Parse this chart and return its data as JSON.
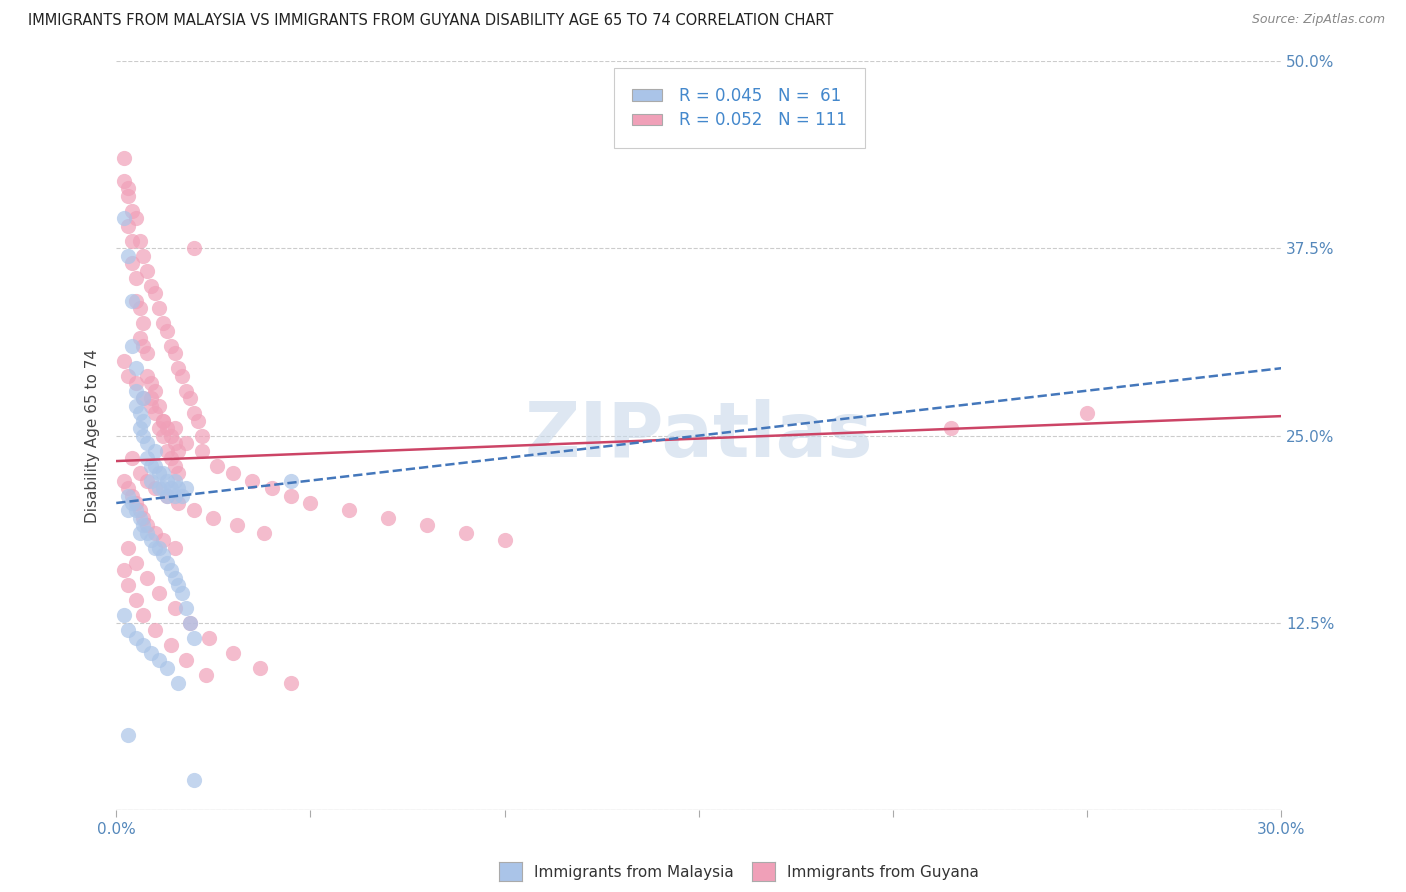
{
  "title": "IMMIGRANTS FROM MALAYSIA VS IMMIGRANTS FROM GUYANA DISABILITY AGE 65 TO 74 CORRELATION CHART",
  "source": "Source: ZipAtlas.com",
  "xlabel_label": "Immigrants from Malaysia",
  "xlabel_label2": "Immigrants from Guyana",
  "ylabel": "Disability Age 65 to 74",
  "xlim": [
    0.0,
    0.3
  ],
  "ylim": [
    0.0,
    0.5
  ],
  "xtick_positions": [
    0.0,
    0.05,
    0.1,
    0.15,
    0.2,
    0.25,
    0.3
  ],
  "ytick_positions": [
    0.0,
    0.125,
    0.25,
    0.375,
    0.5
  ],
  "malaysia_color": "#aac4e8",
  "guyana_color": "#f0a0b8",
  "malaysia_line_color": "#4477bb",
  "guyana_line_color": "#cc4466",
  "r_malaysia": 0.045,
  "n_malaysia": 61,
  "r_guyana": 0.052,
  "n_guyana": 111,
  "watermark": "ZIPatlas",
  "malaysia_scatter_x": [
    0.002,
    0.003,
    0.004,
    0.004,
    0.005,
    0.005,
    0.005,
    0.006,
    0.006,
    0.007,
    0.007,
    0.007,
    0.008,
    0.008,
    0.009,
    0.009,
    0.01,
    0.01,
    0.011,
    0.011,
    0.012,
    0.012,
    0.013,
    0.013,
    0.014,
    0.015,
    0.015,
    0.016,
    0.017,
    0.018,
    0.003,
    0.003,
    0.004,
    0.005,
    0.006,
    0.006,
    0.007,
    0.008,
    0.009,
    0.01,
    0.011,
    0.012,
    0.013,
    0.014,
    0.015,
    0.016,
    0.017,
    0.018,
    0.019,
    0.02,
    0.002,
    0.003,
    0.005,
    0.007,
    0.009,
    0.011,
    0.013,
    0.016,
    0.02,
    0.003,
    0.045
  ],
  "malaysia_scatter_y": [
    0.395,
    0.37,
    0.34,
    0.31,
    0.295,
    0.28,
    0.27,
    0.265,
    0.255,
    0.275,
    0.26,
    0.25,
    0.245,
    0.235,
    0.23,
    0.22,
    0.24,
    0.23,
    0.225,
    0.215,
    0.225,
    0.215,
    0.22,
    0.21,
    0.215,
    0.22,
    0.21,
    0.215,
    0.21,
    0.215,
    0.21,
    0.2,
    0.205,
    0.2,
    0.195,
    0.185,
    0.19,
    0.185,
    0.18,
    0.175,
    0.175,
    0.17,
    0.165,
    0.16,
    0.155,
    0.15,
    0.145,
    0.135,
    0.125,
    0.115,
    0.13,
    0.12,
    0.115,
    0.11,
    0.105,
    0.1,
    0.095,
    0.085,
    0.02,
    0.05,
    0.22
  ],
  "guyana_scatter_x": [
    0.002,
    0.002,
    0.003,
    0.003,
    0.004,
    0.004,
    0.005,
    0.005,
    0.006,
    0.006,
    0.007,
    0.007,
    0.008,
    0.008,
    0.009,
    0.009,
    0.01,
    0.01,
    0.011,
    0.011,
    0.012,
    0.012,
    0.013,
    0.013,
    0.014,
    0.014,
    0.015,
    0.015,
    0.016,
    0.016,
    0.003,
    0.004,
    0.005,
    0.006,
    0.007,
    0.008,
    0.009,
    0.01,
    0.011,
    0.012,
    0.013,
    0.014,
    0.015,
    0.016,
    0.017,
    0.018,
    0.019,
    0.02,
    0.021,
    0.022,
    0.002,
    0.003,
    0.005,
    0.007,
    0.009,
    0.012,
    0.015,
    0.018,
    0.022,
    0.026,
    0.03,
    0.035,
    0.04,
    0.045,
    0.05,
    0.06,
    0.07,
    0.08,
    0.09,
    0.1,
    0.004,
    0.006,
    0.008,
    0.01,
    0.013,
    0.016,
    0.02,
    0.025,
    0.031,
    0.038,
    0.003,
    0.005,
    0.008,
    0.011,
    0.015,
    0.019,
    0.024,
    0.03,
    0.037,
    0.045,
    0.002,
    0.003,
    0.004,
    0.005,
    0.006,
    0.007,
    0.008,
    0.01,
    0.012,
    0.015,
    0.002,
    0.003,
    0.005,
    0.007,
    0.01,
    0.014,
    0.018,
    0.023,
    0.02,
    0.215,
    0.25
  ],
  "guyana_scatter_y": [
    0.435,
    0.42,
    0.41,
    0.39,
    0.38,
    0.365,
    0.355,
    0.34,
    0.335,
    0.315,
    0.325,
    0.31,
    0.305,
    0.29,
    0.285,
    0.275,
    0.28,
    0.265,
    0.27,
    0.255,
    0.26,
    0.25,
    0.255,
    0.24,
    0.25,
    0.235,
    0.245,
    0.23,
    0.24,
    0.225,
    0.415,
    0.4,
    0.395,
    0.38,
    0.37,
    0.36,
    0.35,
    0.345,
    0.335,
    0.325,
    0.32,
    0.31,
    0.305,
    0.295,
    0.29,
    0.28,
    0.275,
    0.265,
    0.26,
    0.25,
    0.3,
    0.29,
    0.285,
    0.275,
    0.27,
    0.26,
    0.255,
    0.245,
    0.24,
    0.23,
    0.225,
    0.22,
    0.215,
    0.21,
    0.205,
    0.2,
    0.195,
    0.19,
    0.185,
    0.18,
    0.235,
    0.225,
    0.22,
    0.215,
    0.21,
    0.205,
    0.2,
    0.195,
    0.19,
    0.185,
    0.175,
    0.165,
    0.155,
    0.145,
    0.135,
    0.125,
    0.115,
    0.105,
    0.095,
    0.085,
    0.22,
    0.215,
    0.21,
    0.205,
    0.2,
    0.195,
    0.19,
    0.185,
    0.18,
    0.175,
    0.16,
    0.15,
    0.14,
    0.13,
    0.12,
    0.11,
    0.1,
    0.09,
    0.375,
    0.255,
    0.265
  ]
}
